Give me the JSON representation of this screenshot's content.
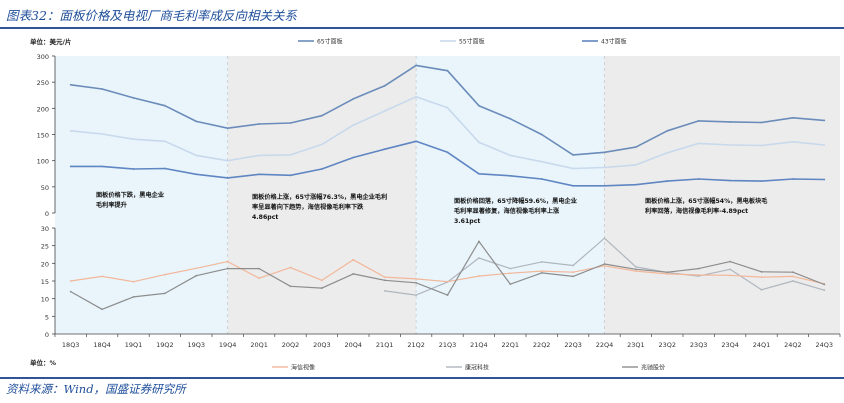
{
  "figure_title": "图表32：面板价格及电视厂商毛利率成反向相关关系",
  "source_note": "资料来源：Wind，国盛证券研究所",
  "colors": {
    "accent": "#1f4e9a",
    "panel_shade_blue": "#e9f5fb",
    "panel_shade_gray": "#ececec",
    "s65": "#6b8cba",
    "s55": "#c8d9ec",
    "s43": "#5f86c2",
    "hisense": "#f2b79a",
    "jingwang": "#b0b6bf",
    "zhaochi": "#8d8d8d"
  },
  "chart_data": [
    {
      "type": "line",
      "unit_label": "单位：美元/片",
      "categories": [
        "18Q3",
        "18Q4",
        "19Q1",
        "19Q2",
        "19Q3",
        "19Q4",
        "20Q1",
        "20Q2",
        "20Q3",
        "20Q4",
        "21Q1",
        "21Q2",
        "21Q3",
        "21Q4",
        "22Q1",
        "22Q2",
        "22Q3",
        "22Q4",
        "23Q1",
        "23Q2",
        "23Q3",
        "23Q4",
        "24Q1",
        "24Q2",
        "24Q3"
      ],
      "ylim": [
        0,
        300
      ],
      "yticks": [
        0,
        50,
        100,
        150,
        200,
        250,
        300
      ],
      "legend_position": "top",
      "series": [
        {
          "name": "65寸面板",
          "color_key": "s65",
          "values": [
            245,
            237,
            220,
            205,
            175,
            162,
            170,
            172,
            186,
            218,
            243,
            282,
            272,
            205,
            180,
            150,
            111,
            116,
            126,
            157,
            176,
            174,
            173,
            182,
            177
          ]
        },
        {
          "name": "55寸面板",
          "color_key": "s55",
          "values": [
            157,
            151,
            141,
            137,
            110,
            100,
            110,
            111,
            131,
            168,
            195,
            222,
            201,
            135,
            110,
            98,
            85,
            87,
            92,
            115,
            133,
            130,
            129,
            136,
            130
          ]
        },
        {
          "name": "43寸面板",
          "color_key": "s43",
          "values": [
            89,
            89,
            84,
            85,
            74,
            67,
            74,
            72,
            84,
            106,
            122,
            137,
            116,
            75,
            71,
            65,
            52,
            52,
            54,
            61,
            65,
            62,
            61,
            65,
            64
          ]
        }
      ],
      "annotations": [
        {
          "id": "a1",
          "lines": [
            "面板价格下跌，黑电企业",
            "毛利率提升"
          ]
        },
        {
          "id": "a2",
          "lines": [
            "面板价格上涨，65寸涨幅76.3%，黑电企业毛利",
            "率呈显著向下趋势，海信视像毛利率下跌",
            "4.86pct"
          ]
        },
        {
          "id": "a3",
          "lines": [
            "面板价格回落，65寸降幅59.6%，黑电企业",
            "毛利率显著修复，海信视像毛利率上涨",
            "3.61pct"
          ]
        },
        {
          "id": "a4",
          "lines": [
            "面板价格上涨，65寸涨幅54%，黑电板块毛",
            "利率回落，海信视像毛利率-4.89pct"
          ]
        }
      ]
    },
    {
      "type": "line",
      "unit_label": "单位：%",
      "categories": [
        "18Q3",
        "18Q4",
        "19Q1",
        "19Q2",
        "19Q3",
        "19Q4",
        "20Q1",
        "20Q2",
        "20Q3",
        "20Q4",
        "21Q1",
        "21Q2",
        "21Q3",
        "21Q4",
        "22Q1",
        "22Q2",
        "22Q3",
        "22Q4",
        "23Q1",
        "23Q2",
        "23Q3",
        "23Q4",
        "24Q1",
        "24Q2",
        "24Q3"
      ],
      "ylim": [
        0,
        30
      ],
      "yticks": [
        0,
        5,
        10,
        15,
        20,
        25,
        30
      ],
      "legend_position": "bottom",
      "series": [
        {
          "name": "海信视像",
          "color_key": "hisense",
          "values": [
            15,
            16.3,
            14.8,
            16.8,
            18.6,
            20.5,
            15.8,
            18.8,
            15.2,
            21,
            16.1,
            15.6,
            14.8,
            16.4,
            17.2,
            17.8,
            17.5,
            19.3,
            17.8,
            17,
            16.7,
            16.6,
            16.1,
            16.3,
            14.2
          ]
        },
        {
          "name": "康冠科技",
          "color_key": "jingwang",
          "values": [
            null,
            null,
            null,
            null,
            null,
            null,
            null,
            null,
            null,
            null,
            12.2,
            11,
            14.7,
            21.5,
            18.5,
            20.4,
            19.4,
            27.1,
            19,
            17.4,
            16.4,
            18.3,
            12.5,
            15,
            12.4
          ]
        },
        {
          "name": "兆驰股份",
          "color_key": "zhaochi",
          "values": [
            12,
            7,
            10.5,
            11.5,
            16.5,
            18.5,
            18.5,
            13.5,
            13,
            17,
            15.2,
            14.5,
            11,
            26.2,
            14.1,
            17.3,
            16.3,
            19.8,
            18.3,
            17.5,
            18.5,
            20.5,
            17.6,
            17.5,
            14
          ]
        }
      ]
    }
  ]
}
